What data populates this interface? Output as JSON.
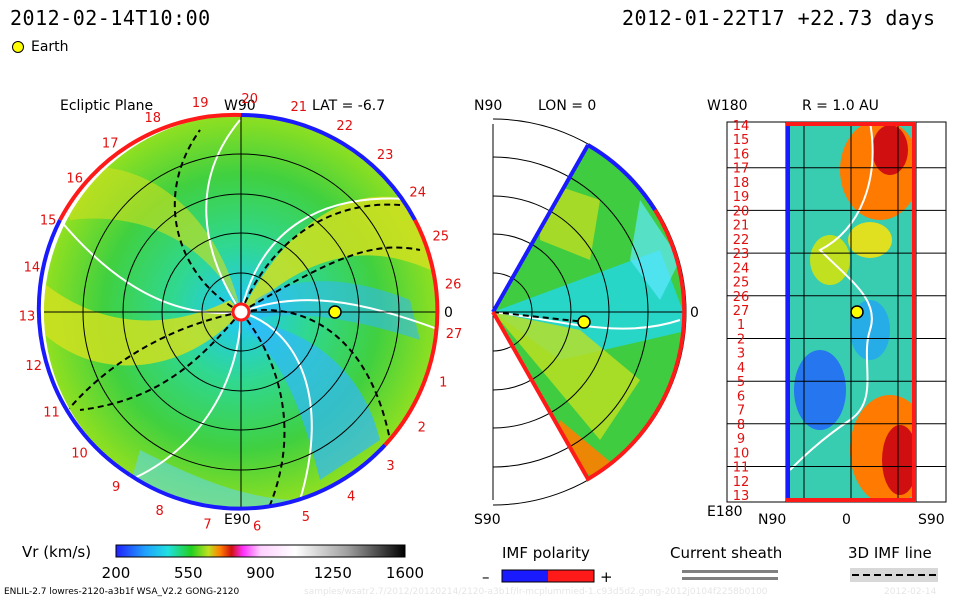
{
  "header": {
    "left_time": "2012-02-14T10:00",
    "right_time": "2012-01-22T17",
    "right_offset": "+22.73 days"
  },
  "legend": {
    "earth_label": "Earth"
  },
  "panels": {
    "ecliptic": {
      "title": "Ecliptic Plane",
      "lat_label": "LAT = -6.7",
      "top_label": "W90",
      "bottom_label": "E90",
      "right_label": "0",
      "carrington_labels": [
        "19",
        "20",
        "21",
        "22",
        "23",
        "24",
        "25",
        "26",
        "27",
        "1",
        "2",
        "3",
        "4",
        "5",
        "6",
        "7",
        "8",
        "9",
        "10",
        "11",
        "12",
        "13",
        "14",
        "15",
        "16",
        "17",
        "18"
      ]
    },
    "meridional": {
      "top_label": "N90",
      "lon_label": "LON = 0",
      "bottom_label": "S90",
      "right_label": "0"
    },
    "radial": {
      "top_left_label": "W180",
      "r_label": "R = 1.0 AU",
      "bottom_left_label": "E180",
      "bottom_labels": [
        "N90",
        "0",
        "S90"
      ],
      "y_ticks": [
        "14",
        "15",
        "16",
        "17",
        "18",
        "19",
        "20",
        "21",
        "22",
        "23",
        "24",
        "25",
        "26",
        "27",
        "1",
        "2",
        "3",
        "4",
        "5",
        "6",
        "7",
        "8",
        "9",
        "10",
        "11",
        "12",
        "13"
      ]
    }
  },
  "colorbar": {
    "label": "Vr (km/s)",
    "ticks": [
      "200",
      "550",
      "900",
      "1250",
      "1600"
    ],
    "min": 200,
    "max": 1600
  },
  "legends_bottom": {
    "imf_polarity": "IMF polarity",
    "minus": "–",
    "plus": "+",
    "current_sheath": "Current sheath",
    "imf_line": "3D IMF line"
  },
  "footer": {
    "left": "ENLIL-2.7 lowres-2120-a3b1f WSA_V2.2 GONG-2120",
    "middle": "samples/wsatr2.7/2012/20120214/2120-a3b1f/lr-mcplumrnied-1.c93d5d2.gong-2012j0104f2258b0100",
    "right": "2012-02-14"
  },
  "colors": {
    "positive_polarity": "#ff1a1a",
    "negative_polarity": "#1a1aff",
    "earth": "#ffff00",
    "sheath": "#808080"
  },
  "chart_data": {
    "type": "heatmap",
    "title": "",
    "xlabel": "",
    "ylabel": "",
    "colorbar_range": [
      200,
      1600
    ],
    "colorbar_ticks": [
      200,
      550,
      900,
      1250,
      1600
    ],
    "earth_marker": {
      "ecliptic_angle_deg": 0,
      "radius_au": 1.0
    }
  }
}
